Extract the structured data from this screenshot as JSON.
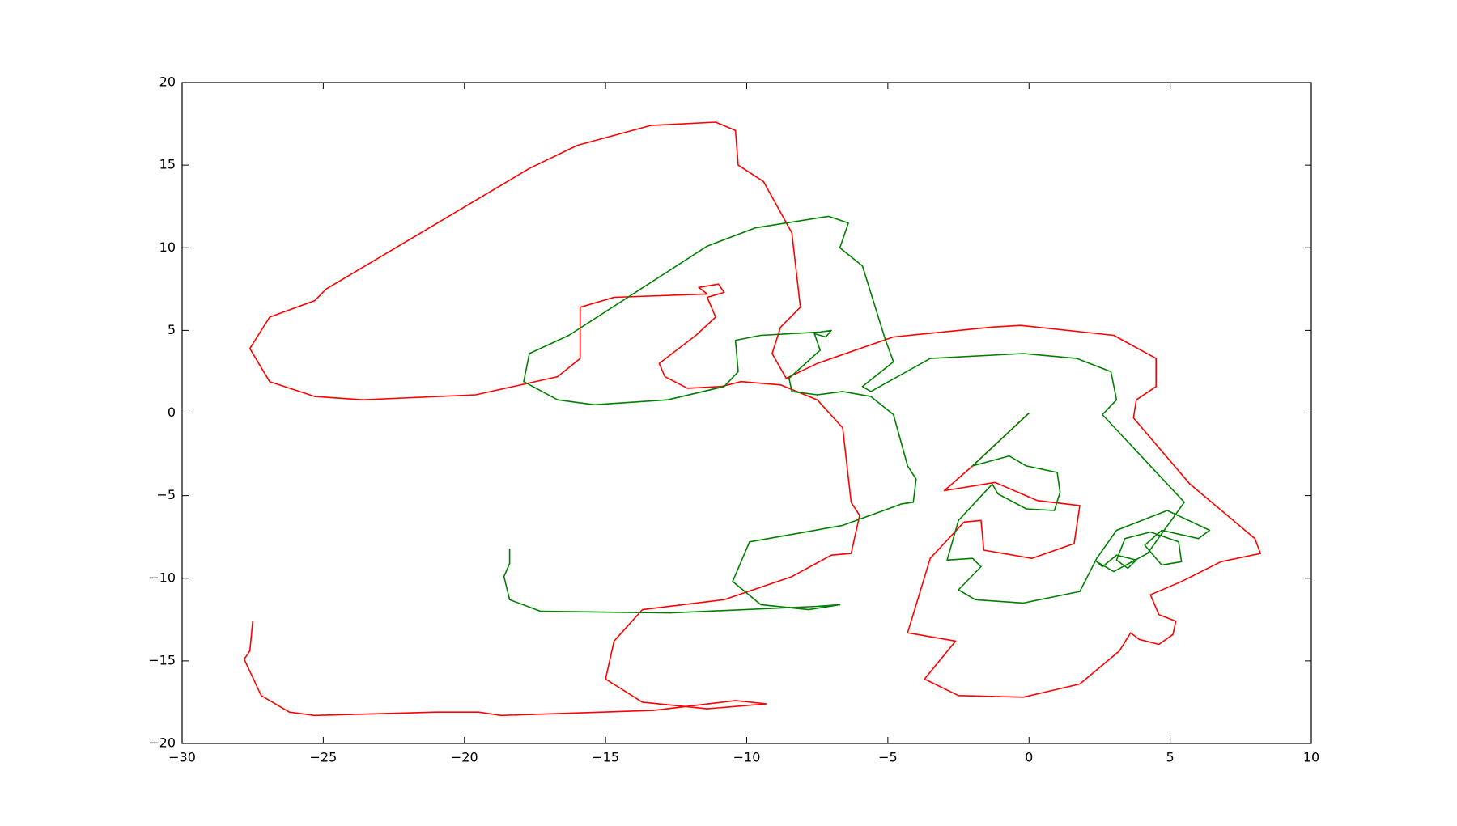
{
  "chart_data": {
    "type": "line",
    "xlim": [
      -30,
      10
    ],
    "ylim": [
      -20,
      20
    ],
    "xticks": [
      {
        "value": -30,
        "label": "−30"
      },
      {
        "value": -25,
        "label": "−25"
      },
      {
        "value": -20,
        "label": "−20"
      },
      {
        "value": -15,
        "label": "−15"
      },
      {
        "value": -10,
        "label": "−10"
      },
      {
        "value": -5,
        "label": "−5"
      },
      0,
      5,
      10
    ],
    "yticks": [
      {
        "value": -20,
        "label": "−20"
      },
      {
        "value": -15,
        "label": "−15"
      },
      {
        "value": -10,
        "label": "−10"
      },
      {
        "value": -5,
        "label": "−5"
      },
      0,
      5,
      10,
      15,
      20
    ],
    "series": [
      {
        "color": "#ff0000",
        "x": [
          0,
          -2,
          -3.0,
          -1.2,
          0.3,
          1.8,
          1.6,
          0.1,
          -1.6,
          -1.7,
          -2.3,
          -3.5,
          -4.3,
          -2.6,
          -3.7,
          -2.5,
          -0.2,
          1.8,
          3.2,
          3.6,
          3.9,
          4.6,
          5.1,
          5.2,
          4.6,
          4.3,
          5.4,
          6.8,
          8.2,
          8.0,
          5.7,
          3.7,
          3.8,
          4.5,
          4.5,
          3.0,
          -0.3,
          -1.3,
          -4.8,
          -7.5,
          -8.6,
          -9.1,
          -8.8,
          -8.1,
          -8.4,
          -9.4,
          -10.3,
          -10.4,
          -11.1,
          -13.4,
          -16.0,
          -17.7,
          -24.9,
          -25.3,
          -26.9,
          -27.6,
          -26.9,
          -25.3,
          -23.6,
          -19.6,
          -16.7,
          -15.9,
          -15.9,
          -14.7,
          -11.4,
          -11.7,
          -11.0,
          -10.8,
          -11.4,
          -11.1,
          -11.8,
          -13.1,
          -12.9,
          -12.1,
          -10.9,
          -10.2,
          -8.8,
          -7.5,
          -6.6,
          -6.3,
          -6.0,
          -6.3,
          -7.0,
          -8.4,
          -10.8,
          -13.7,
          -14.7,
          -15.0,
          -13.7,
          -11.4,
          -9.3,
          -10.4,
          -13.3,
          -18.7,
          -19.5,
          -21.0,
          -25.3,
          -26.2,
          -27.2,
          -27.8,
          -27.6,
          -27.5
        ],
        "values": [
          0,
          -3.2,
          -4.7,
          -4.2,
          -5.3,
          -5.6,
          -7.9,
          -8.8,
          -8.3,
          -6.5,
          -6.6,
          -8.8,
          -13.3,
          -13.8,
          -16.1,
          -17.1,
          -17.2,
          -16.4,
          -14.4,
          -13.3,
          -13.7,
          -14.0,
          -13.4,
          -12.6,
          -12.2,
          -11.0,
          -10.2,
          -9.0,
          -8.5,
          -7.6,
          -4.3,
          -0.3,
          0.8,
          1.6,
          3.3,
          4.7,
          5.3,
          5.2,
          4.6,
          3.0,
          2.1,
          3.6,
          5.2,
          6.4,
          10.9,
          14.0,
          15.0,
          17.1,
          17.6,
          17.4,
          16.2,
          14.8,
          7.5,
          6.8,
          5.8,
          3.9,
          1.9,
          1.0,
          0.8,
          1.1,
          2.2,
          3.3,
          6.4,
          7.0,
          7.2,
          7.6,
          7.8,
          7.3,
          7.0,
          5.8,
          4.7,
          3.0,
          2.2,
          1.5,
          1.6,
          1.9,
          1.7,
          0.8,
          -0.9,
          -5.4,
          -6.2,
          -8.5,
          -8.6,
          -9.9,
          -11.3,
          -11.9,
          -13.8,
          -16.1,
          -17.5,
          -17.9,
          -17.6,
          -17.4,
          -18.0,
          -18.3,
          -18.1,
          -18.1,
          -18.3,
          -18.1,
          -17.1,
          -14.9,
          -14.4,
          -12.6
        ]
      },
      {
        "color": "#008000",
        "x": [
          0,
          -2,
          -0.7,
          -0.1,
          1.0,
          1.1,
          0.9,
          -0.1,
          -1.1,
          -1.3,
          -2.5,
          -2.9,
          -2.0,
          -1.7,
          -2.5,
          -1.9,
          -0.2,
          1.8,
          2.4,
          3.1,
          4.9,
          6.4,
          6.0,
          4.7,
          4.1,
          4.7,
          5.4,
          5.3,
          4.3,
          3.4,
          3.1,
          3.5,
          3.8,
          3.1,
          2.6,
          2.4,
          3.0,
          4.2,
          5.5,
          2.6,
          3.1,
          2.9,
          1.7,
          -0.2,
          -3.5,
          -5.6,
          -5.9,
          -4.8,
          -5.1,
          -5.9,
          -6.7,
          -6.4,
          -7.1,
          -9.7,
          -11.4,
          -16.3,
          -17.7,
          -17.9,
          -16.7,
          -15.4,
          -12.8,
          -10.8,
          -10.3,
          -10.4,
          -9.5,
          -7.4,
          -7.0,
          -7.2,
          -7.6,
          -7.4,
          -8.5,
          -8.4,
          -7.5,
          -6.6,
          -5.6,
          -4.8,
          -4.3,
          -4.0,
          -4.1,
          -4.5,
          -6.6,
          -9.9,
          -10.5,
          -9.5,
          -7.8,
          -6.7,
          -7.5,
          -12.7,
          -17.3,
          -18.4,
          -18.6,
          -18.4,
          -18.4
        ],
        "values": [
          0,
          -3.2,
          -2.6,
          -3.2,
          -3.6,
          -4.8,
          -5.9,
          -5.8,
          -4.9,
          -4.3,
          -6.5,
          -8.9,
          -8.8,
          -9.3,
          -10.7,
          -11.3,
          -11.5,
          -10.8,
          -8.8,
          -7.1,
          -5.9,
          -7.1,
          -7.6,
          -7.1,
          -8.0,
          -9.2,
          -9.0,
          -7.8,
          -7.2,
          -7.6,
          -8.9,
          -9.4,
          -8.9,
          -8.6,
          -9.3,
          -9.0,
          -9.6,
          -8.5,
          -5.4,
          -0.1,
          0.8,
          2.5,
          3.3,
          3.6,
          3.3,
          1.3,
          1.6,
          3.1,
          4.5,
          8.9,
          10.0,
          11.5,
          11.9,
          11.2,
          10.1,
          4.7,
          3.6,
          1.9,
          0.8,
          0.5,
          0.8,
          1.6,
          2.5,
          4.4,
          4.7,
          4.9,
          5.0,
          4.6,
          4.8,
          3.8,
          2.1,
          1.3,
          1.1,
          1.3,
          1.0,
          -0.1,
          -3.2,
          -4.0,
          -5.4,
          -5.5,
          -6.8,
          -7.8,
          -10.2,
          -11.6,
          -11.9,
          -11.6,
          -11.7,
          -12.1,
          -12.0,
          -11.3,
          -9.9,
          -9.1,
          -8.2
        ]
      }
    ]
  }
}
